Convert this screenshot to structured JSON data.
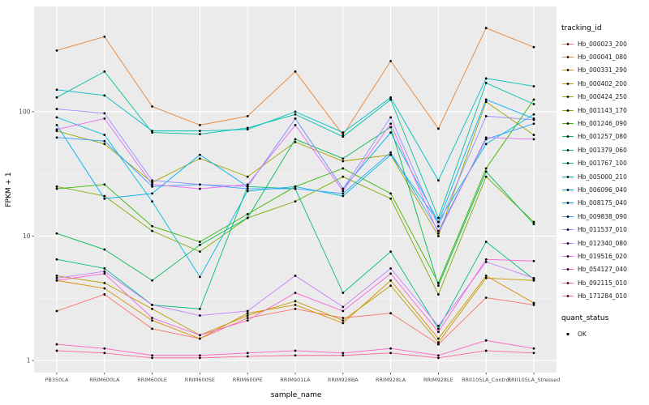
{
  "figure": {
    "background": "#FFFFFF",
    "panel_background": "#EBEBEB",
    "grid_major_color": "#FFFFFF",
    "grid_minor_color": "#F5F5F5",
    "tick_label_color": "#4D4D4D",
    "point_color": "#000000"
  },
  "chart_data": {
    "type": "line",
    "title": "",
    "xlabel": "sample_name",
    "ylabel": "FPKM + 1",
    "y_scale": "log10",
    "ylim": [
      0.8,
      700
    ],
    "y_ticks": [
      1,
      10,
      100
    ],
    "y_tick_labels": [
      "1",
      "10",
      "100"
    ],
    "y_minor": [
      3.162,
      31.62,
      316.2
    ],
    "grid": true,
    "legend_position": "right",
    "point_marker": "dot",
    "categories": [
      "PB350LA",
      "RRIM600LA",
      "RRIM600LE",
      "RRIM600SE",
      "RRIM600PE",
      "RRIM901LA",
      "RRIM928BA",
      "RRIM928LA",
      "RRIM928LE",
      "RRII105LA_Control",
      "RRII105LA_Stressed"
    ],
    "series": [
      {
        "name": "Hb_000023_200",
        "color": "#F8766D",
        "values": [
          2.5,
          3.4,
          1.8,
          1.5,
          2.2,
          2.6,
          2.2,
          2.4,
          1.35,
          3.2,
          2.8
        ]
      },
      {
        "name": "Hb_000041_080",
        "color": "#EA8331",
        "values": [
          310,
          400,
          110,
          78,
          92,
          210,
          65,
          255,
          73,
          470,
          330
        ]
      },
      {
        "name": "Hb_000331_290",
        "color": "#D89000",
        "values": [
          4.4,
          3.8,
          2.1,
          1.5,
          2.4,
          2.8,
          2.0,
          4.4,
          1.5,
          4.8,
          2.9
        ]
      },
      {
        "name": "Hb_000402_200",
        "color": "#C09B00",
        "values": [
          4.8,
          4.2,
          2.6,
          1.6,
          2.3,
          3.0,
          2.1,
          4.0,
          1.4,
          4.6,
          4.4
        ]
      },
      {
        "name": "Hb_000424_250",
        "color": "#A3A500",
        "values": [
          70,
          55,
          27,
          42,
          30,
          57,
          40,
          45,
          10,
          120,
          65
        ]
      },
      {
        "name": "Hb_001143_170",
        "color": "#7CAE00",
        "values": [
          25,
          21,
          11,
          7.5,
          14,
          19,
          30,
          20,
          3.4,
          30,
          13
        ]
      },
      {
        "name": "Hb_001246_090",
        "color": "#39B600",
        "values": [
          24,
          26,
          12,
          9,
          15,
          25,
          35,
          22,
          4.2,
          35,
          125
        ]
      },
      {
        "name": "Hb_001257_080",
        "color": "#00BB4E",
        "values": [
          10.5,
          7.8,
          4.4,
          8.5,
          14,
          60,
          42,
          75,
          4.0,
          33,
          12.5
        ]
      },
      {
        "name": "Hb_001379_060",
        "color": "#00BF7D",
        "values": [
          6.5,
          5.5,
          2.8,
          2.6,
          25,
          24,
          3.5,
          7.5,
          1.8,
          9,
          4.5
        ]
      },
      {
        "name": "Hb_001767_100",
        "color": "#00C1A3",
        "values": [
          130,
          210,
          68,
          66,
          74,
          95,
          63,
          125,
          14,
          170,
          115
        ]
      },
      {
        "name": "Hb_005000_210",
        "color": "#00BFC4",
        "values": [
          150,
          135,
          70,
          70,
          72,
          100,
          68,
          130,
          28,
          185,
          160
        ]
      },
      {
        "name": "Hb_006096_040",
        "color": "#00BAE0",
        "values": [
          90,
          65,
          19,
          4.7,
          23,
          25,
          21,
          45,
          13,
          55,
          95
        ]
      },
      {
        "name": "Hb_008175_040",
        "color": "#00B0F6",
        "values": [
          78,
          20,
          22,
          45,
          25,
          88,
          24,
          68,
          13,
          125,
          88
        ]
      },
      {
        "name": "Hb_009838_090",
        "color": "#35A2FF",
        "values": [
          62,
          58,
          25,
          26,
          24,
          24,
          22,
          47,
          11,
          60,
          80
        ]
      },
      {
        "name": "Hb_011537_010",
        "color": "#9590FF",
        "values": [
          105,
          97,
          28,
          26,
          25,
          88,
          24,
          90,
          12,
          92,
          86
        ]
      },
      {
        "name": "Hb_012340_080",
        "color": "#C77CFF",
        "values": [
          4.6,
          5.2,
          2.8,
          2.3,
          2.5,
          4.8,
          2.7,
          5.5,
          1.9,
          6.2,
          4.6
        ]
      },
      {
        "name": "Hb_019516_020",
        "color": "#E76BF3",
        "values": [
          72,
          88,
          26,
          24,
          26,
          78,
          23,
          80,
          10.5,
          62,
          60
        ]
      },
      {
        "name": "Hb_054127_040",
        "color": "#FA62DB",
        "values": [
          4.4,
          5.0,
          2.2,
          1.6,
          2.1,
          3.5,
          2.5,
          5.0,
          1.7,
          6.5,
          6.3
        ]
      },
      {
        "name": "Hb_092115_010",
        "color": "#FF62BC",
        "values": [
          1.35,
          1.25,
          1.1,
          1.1,
          1.15,
          1.2,
          1.15,
          1.25,
          1.1,
          1.45,
          1.25
        ]
      },
      {
        "name": "Hb_171284_010",
        "color": "#FF6A98",
        "values": [
          1.2,
          1.15,
          1.05,
          1.05,
          1.08,
          1.1,
          1.1,
          1.15,
          1.05,
          1.2,
          1.15
        ]
      }
    ]
  },
  "legend": {
    "tracking_title": "tracking_id",
    "quant_title": "quant_status",
    "quant_items": [
      {
        "label": "OK"
      }
    ]
  }
}
